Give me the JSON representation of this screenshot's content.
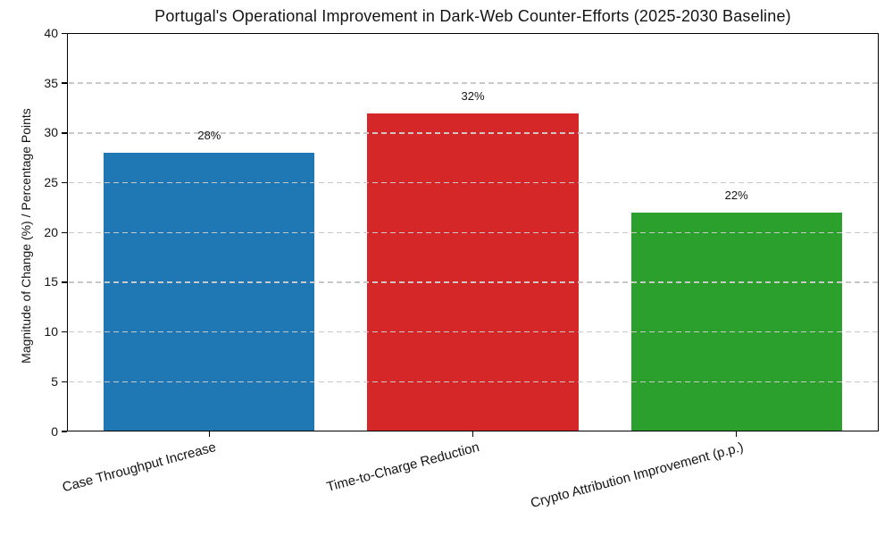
{
  "chart_data": {
    "type": "bar",
    "title": "Portugal's Operational Improvement in Dark-Web Counter-Efforts (2025-2030 Baseline)",
    "ylabel": "Magnitude of Change (%) / Percentage Points",
    "xlabel": "",
    "categories": [
      "Case Throughput Increase",
      "Time-to-Charge Reduction",
      "Crypto Attribution Improvement (p.p.)"
    ],
    "values": [
      28,
      32,
      22
    ],
    "value_labels": [
      "28%",
      "32%",
      "22%"
    ],
    "bar_colors": [
      "#1f77b4",
      "#d62728",
      "#2ca02c"
    ],
    "ylim": [
      0,
      40
    ],
    "yticks": [
      0,
      5,
      10,
      15,
      20,
      25,
      30,
      35,
      40
    ],
    "grid": "horizontal-dashed",
    "grid_color": "#c9c9c9",
    "frame_color": "#000000",
    "background_color": "#ffffff",
    "legend": "none"
  }
}
